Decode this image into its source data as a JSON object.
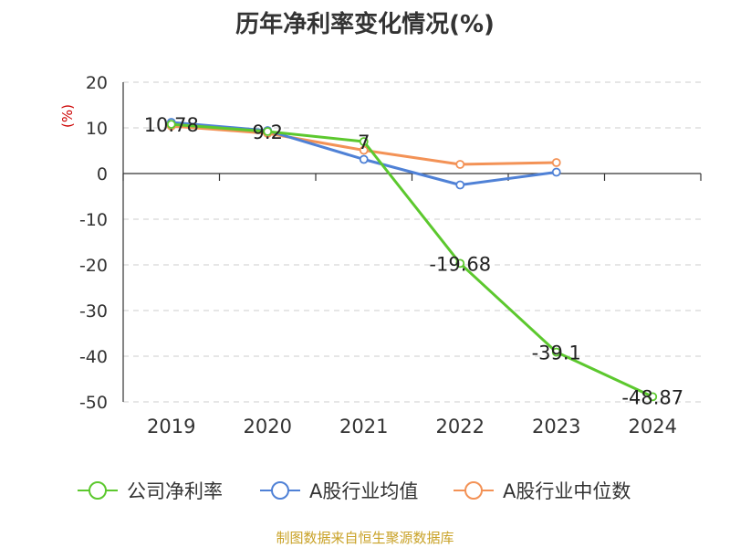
{
  "title": "历年净利率变化情况(%)",
  "source": "制图数据来自恒生聚源数据库",
  "colors": {
    "company": "#5cc82e",
    "industry_avg": "#4f81d6",
    "industry_median": "#f39256",
    "axis": "#333333",
    "grid": "#cccccc",
    "unit": "#cc0000"
  },
  "chart_data": {
    "type": "line",
    "title": "历年净利率变化情况(%)",
    "ylabel": "(%)",
    "xlabel": "",
    "categories": [
      "2019",
      "2020",
      "2021",
      "2022",
      "2023",
      "2024"
    ],
    "ylim": [
      -50,
      20
    ],
    "yticks": [
      20,
      10,
      0,
      -10,
      -20,
      -30,
      -40,
      -50
    ],
    "grid": true,
    "legend_position": "bottom",
    "series": [
      {
        "name": "公司净利率",
        "key": "company",
        "values": [
          10.78,
          9.2,
          7,
          -19.68,
          -39.1,
          -48.87
        ],
        "labels": [
          "10.78",
          "9.2",
          "7",
          "-19.68",
          "-39.1",
          "-48.87"
        ]
      },
      {
        "name": "A股行业均值",
        "key": "industry_avg",
        "values": [
          11.2,
          9.4,
          3.1,
          -2.5,
          0.3,
          null
        ]
      },
      {
        "name": "A股行业中位数",
        "key": "industry_median",
        "values": [
          10.4,
          8.8,
          5.1,
          2.0,
          2.4,
          null
        ]
      }
    ]
  }
}
